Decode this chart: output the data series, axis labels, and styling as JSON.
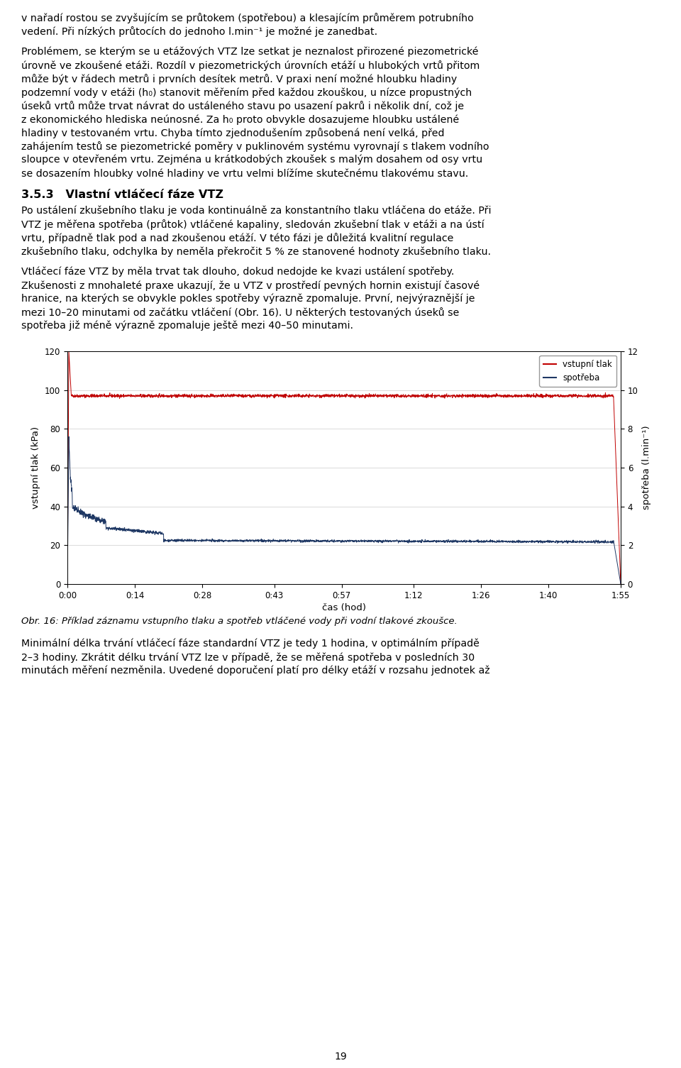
{
  "page_number": "19",
  "p1_lines": [
    "v nařadí rostou se zvyšujícím se průtokem (spotřebou) a klesajícím průměrem potrubního",
    "vedení. Při nízkých průtocích do jednoho l.min⁻¹ je možné je zanedbat."
  ],
  "p2_lines": [
    "Problémem, se kterým se u etážových VTZ lze setkat je neznalost přirozené piezometrické",
    "úrovně ve zkoušené etáži. Rozdíl v piezometrických úrovních etáží u hlubokých vrtů přitom",
    "může být v řádech metrů i prvních desítek metrů. V praxi není možné hloubku hladiny",
    "podzemní vody v etáži (h₀) stanovit měřením před každou zkouškou, u nízce propustných",
    "úseků vrtů může trvat návrat do ustáleného stavu po usazení pakrů i několik dní, což je",
    "z ekonomického hlediska neúnosné. Za h₀ proto obvykle dosazujeme hloubku ustálené",
    "hladiny v testovaném vrtu. Chyba tímto zjednodušením způsobená není velká, před",
    "zahájením testů se piezometrické poměry v puklinovém systému vyrovnají s tlakem vodního",
    "sloupce v otevřeném vrtu. Zejména u krátkodobých zkoušek s malým dosahem od osy vrtu",
    "se dosazením hloubky volné hladiny ve vrtu velmi blížíme skutečnému tlakovému stavu."
  ],
  "heading": "3.5.3   Vlastní vtláčecí fáze VTZ",
  "p3_lines": [
    "Po ustálení zkušebního tlaku je voda kontinuálně za konstantního tlaku vtláčena do etáže. Při",
    "VTZ je měřena spotřeba (průtok) vtláčené kapaliny, sledován zkušební tlak v etáži a na ústí",
    "vrtu, případně tlak pod a nad zkoušenou etáží. V této fázi je důležitá kvalitní regulace",
    "zkušebního tlaku, odchylka by neměla překročit 5 % ze stanovené hodnoty zkušebního tlaku."
  ],
  "p4_lines": [
    "Vtláčecí fáze VTZ by měla trvat tak dlouho, dokud nedojde ke kvazi ustálení spotřeby.",
    "Zkušenosti z mnohaleté praxe ukazují, že u VTZ v prostředí pevných hornin existují časové",
    "hranice, na kterých se obvykle pokles spotřeby výrazně zpomaluje. První, nejvýraznější je",
    "mezi 10–20 minutami od začátku vtláčení (Obr. 16). U některých testovaných úseků se",
    "spotřeba již méně výrazně zpomaluje ještě mezi 40–50 minutami."
  ],
  "caption": "Obr. 16: Příklad záznamu vstupního tlaku a spotřeb vtláčené vody při vodní tlakové zkoušce.",
  "p5_lines": [
    "Minimální délka trvání vtláčecí fáze standardní VTZ je tedy 1 hodina, v optimálním případě",
    "2–3 hodiny. Zkrátit délku trvání VTZ lze v případě, že se měřená spotřeba v posledních 30",
    "minutách měření nezměnila. Uvedené doporučení platí pro délky etáží v rozsahu jednotek až"
  ],
  "chart": {
    "xlim": [
      0,
      115
    ],
    "ylim_left": [
      0,
      120
    ],
    "ylim_right": [
      0,
      12
    ],
    "yticks_left": [
      0,
      20,
      40,
      60,
      80,
      100,
      120
    ],
    "yticks_right": [
      0,
      2,
      4,
      6,
      8,
      10,
      12
    ],
    "xtick_positions": [
      0,
      14,
      28,
      43,
      57,
      72,
      86,
      100,
      115
    ],
    "xtick_labels": [
      "0:00",
      "0:14",
      "0:28",
      "0:43",
      "0:57",
      "1:12",
      "1:26",
      "1:40",
      "1:55"
    ],
    "xlabel": "čas (hod)",
    "ylabel_left": "vstupní tlak (kPa)",
    "ylabel_right": "spotřeba (l.min⁻¹)",
    "legend_vstupni": "vstupní tlak",
    "legend_spotreba": "spotřeba",
    "line_vstupni_color": "#c00000",
    "line_spotreba_color": "#1f3864"
  }
}
